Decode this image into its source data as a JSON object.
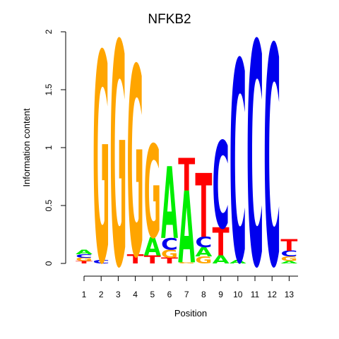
{
  "chart_data": {
    "type": "sequence-logo",
    "title": "NFKB2",
    "xlabel": "Position",
    "ylabel": "Information content",
    "ylim": [
      0,
      2
    ],
    "y_ticks": [
      "0",
      "0.5",
      "1",
      "1.5",
      "2"
    ],
    "y_tick_values": [
      0,
      0.5,
      1,
      1.5,
      2
    ],
    "positions": [
      "1",
      "2",
      "3",
      "4",
      "5",
      "6",
      "7",
      "8",
      "9",
      "10",
      "11",
      "12",
      "13"
    ],
    "colors": {
      "A": "#00ee00",
      "C": "#0000ee",
      "G": "#ffa500",
      "T": "#ff0000"
    },
    "letter_heights": [
      {
        "T": 0.02,
        "G": 0.03,
        "C": 0.03,
        "A": 0.04
      },
      {
        "C": 0.03,
        "G": 1.8
      },
      {
        "G": 1.92
      },
      {
        "T": 0.08,
        "G": 1.63
      },
      {
        "T": 0.07,
        "A": 0.16,
        "G": 0.8
      },
      {
        "T": 0.05,
        "G": 0.07,
        "C": 0.1,
        "A": 0.62
      },
      {
        "G": 0.01,
        "A": 0.62,
        "T": 0.28
      },
      {
        "G": 0.06,
        "A": 0.08,
        "C": 0.09,
        "T": 0.55
      },
      {
        "A": 0.07,
        "T": 0.24,
        "C": 0.75
      },
      {
        "A": 0.03,
        "C": 1.73
      },
      {
        "C": 1.92
      },
      {
        "C": 1.89
      },
      {
        "A": 0.02,
        "G": 0.04,
        "C": 0.05,
        "T": 0.1
      }
    ]
  }
}
